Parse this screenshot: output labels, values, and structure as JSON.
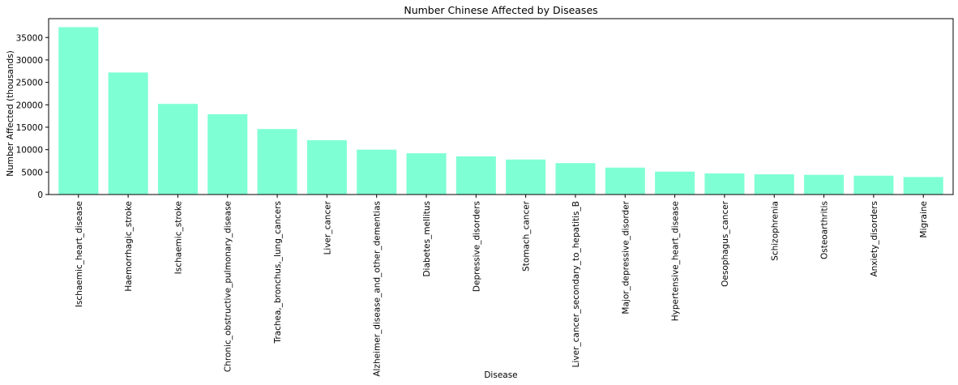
{
  "chart_data": {
    "type": "bar",
    "title": "Number Chinese Affected by Diseases",
    "xlabel": "Disease",
    "ylabel": "Number Affected (thousands)",
    "ylim": [
      0,
      39200
    ],
    "yticks": [
      0,
      5000,
      10000,
      15000,
      20000,
      25000,
      30000,
      35000
    ],
    "grid": false,
    "bar_color": "#7fffd4",
    "categories": [
      "Ischaemic_heart_disease",
      "Haemorrhagic_stroke",
      "Ischaemic_stroke",
      "Chronic_obstructive_pulmonary_disease",
      "Trachea,_bronchus,_lung_cancers",
      "Liver_cancer",
      "Alzheimer_disease_and_other_dementias",
      "Diabetes_mellitus",
      "Depressive_disorders",
      "Stomach_cancer",
      "Liver_cancer_secondary_to_hepatitis_B",
      "Major_depressive_disorder",
      "Hypertensive_heart_disease",
      "Oesophagus_cancer",
      "Schizophrenia",
      "Osteoarthritis",
      "Anxiety_disorders",
      "Migraine"
    ],
    "values": [
      37300,
      27200,
      20200,
      17900,
      14600,
      12100,
      10000,
      9200,
      8500,
      7800,
      7000,
      6000,
      5100,
      4700,
      4500,
      4400,
      4200,
      3900
    ]
  }
}
